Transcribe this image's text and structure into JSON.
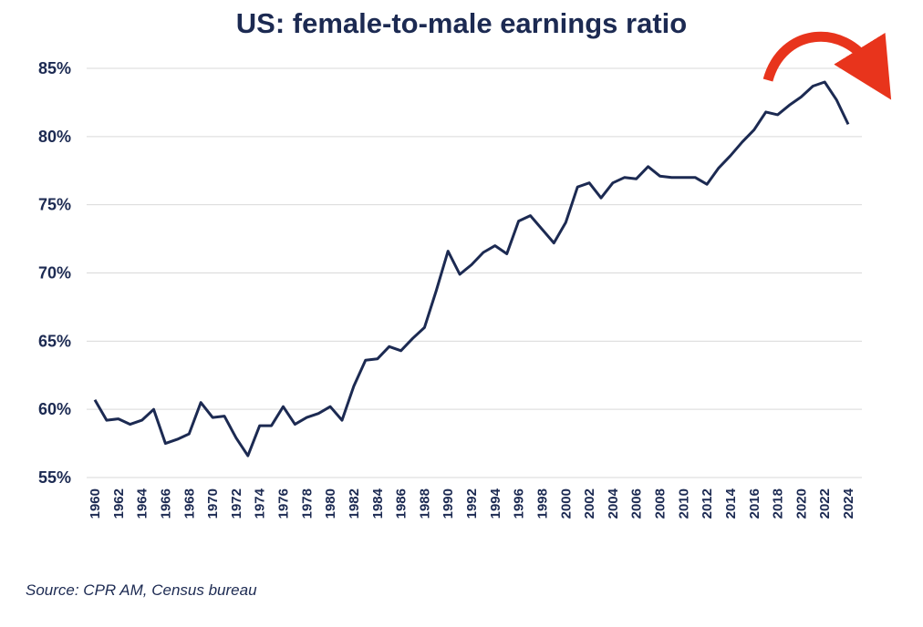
{
  "chart_data": {
    "type": "line",
    "title": "US: female-to-male earnings ratio",
    "source": "Source: CPR AM, Census bureau",
    "xlabel": "",
    "ylabel": "",
    "ylim": [
      55,
      85
    ],
    "xlim": [
      1960,
      2024
    ],
    "yticks": [
      "55%",
      "60%",
      "65%",
      "70%",
      "75%",
      "80%",
      "85%"
    ],
    "ytick_values": [
      55,
      60,
      65,
      70,
      75,
      80,
      85
    ],
    "xticks": [
      "1960",
      "1962",
      "1964",
      "1966",
      "1968",
      "1970",
      "1972",
      "1974",
      "1976",
      "1978",
      "1980",
      "1982",
      "1984",
      "1986",
      "1988",
      "1990",
      "1992",
      "1994",
      "1996",
      "1998",
      "2000",
      "2002",
      "2004",
      "2006",
      "2008",
      "2010",
      "2012",
      "2014",
      "2016",
      "2018",
      "2020",
      "2022",
      "2024"
    ],
    "grid": true,
    "line_color": "#1c2a52",
    "annotation": {
      "type": "arrow",
      "shape": "curved-downturn",
      "color": "#e8341c"
    },
    "x": [
      1960,
      1961,
      1962,
      1963,
      1964,
      1965,
      1966,
      1967,
      1968,
      1969,
      1970,
      1971,
      1972,
      1973,
      1974,
      1975,
      1976,
      1977,
      1978,
      1979,
      1980,
      1981,
      1982,
      1983,
      1984,
      1985,
      1986,
      1987,
      1988,
      1989,
      1990,
      1991,
      1992,
      1993,
      1994,
      1995,
      1996,
      1997,
      1998,
      1999,
      2000,
      2001,
      2002,
      2003,
      2004,
      2005,
      2006,
      2007,
      2008,
      2009,
      2010,
      2011,
      2012,
      2013,
      2014,
      2015,
      2016,
      2017,
      2018,
      2019,
      2020,
      2021,
      2022,
      2023,
      2024
    ],
    "values": [
      60.7,
      59.2,
      59.3,
      58.9,
      59.2,
      60.0,
      57.5,
      57.8,
      58.2,
      60.5,
      59.4,
      59.5,
      57.9,
      56.6,
      58.8,
      58.8,
      60.2,
      58.9,
      59.4,
      59.7,
      60.2,
      59.2,
      61.7,
      63.6,
      63.7,
      64.6,
      64.3,
      65.2,
      66.0,
      68.7,
      71.6,
      69.9,
      70.6,
      71.5,
      72.0,
      71.4,
      73.8,
      74.2,
      73.2,
      72.2,
      73.7,
      76.3,
      76.6,
      75.5,
      76.6,
      77.0,
      76.9,
      77.8,
      77.1,
      77.0,
      77.0,
      77.0,
      76.5,
      77.7,
      78.6,
      79.6,
      80.5,
      81.8,
      81.6,
      82.3,
      82.9,
      83.7,
      84.0,
      82.7,
      80.9
    ]
  }
}
